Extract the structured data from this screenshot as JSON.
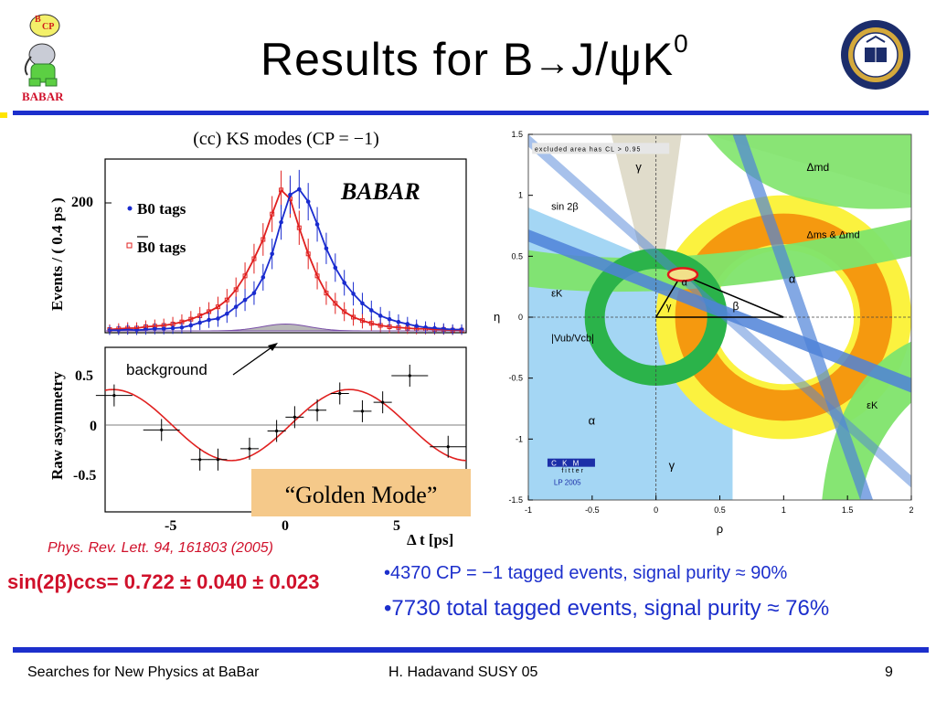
{
  "slide": {
    "title_main": "Results for B",
    "title_arrow": "→",
    "title_jpsi": "J/ψK",
    "title_sup": "0",
    "logo_left_text": "BABAR",
    "footer_left": "Searches for New Physics at BaBar",
    "footer_middle": "H. Hadavand  SUSY 05",
    "page_number": "9",
    "reference": "Phys. Rev. Lett. 94, 161803 (2005)",
    "sin2beta": "sin(2β)ccs= 0.722 ± 0.040 ± 0.023",
    "bullet1": "•4370 CP = −1 tagged events, signal purity ≈ 90%",
    "bullet2": "•7730 total tagged events, signal purity ≈ 76%"
  },
  "chart_data": [
    {
      "type": "scatter",
      "title": "(cc) KS modes (CP = −1)",
      "panel_top": {
        "ylabel": "Events / ( 0.4 ps )",
        "yticks": [
          "200"
        ],
        "logo": "BABAR",
        "legend": [
          "B0 tags",
          "B0 tags"
        ],
        "annotation": "background"
      },
      "panel_bottom": {
        "ylabel": "Raw asymmetry",
        "yticks": [
          "0.5",
          "0",
          "-0.5"
        ],
        "xticks": [
          "-5",
          "0",
          "5"
        ],
        "xlabel": "Δ t [ps]",
        "annotation": "“Golden Mode”"
      },
      "colors": {
        "b0": "#1a2ccf",
        "b0bar": "#e0201f",
        "fit": "#e0201f",
        "background": "#b8b8b8"
      },
      "series": [
        {
          "name": "B0 tags",
          "x": [
            -7.8,
            -7.4,
            -7.0,
            -6.6,
            -6.2,
            -5.8,
            -5.4,
            -5.0,
            -4.6,
            -4.2,
            -3.8,
            -3.4,
            -3.0,
            -2.6,
            -2.2,
            -1.8,
            -1.4,
            -1.0,
            -0.6,
            -0.2,
            0.2,
            0.6,
            1.0,
            1.4,
            1.8,
            2.2,
            2.6,
            3.0,
            3.4,
            3.8,
            4.2,
            4.6,
            5.0,
            5.4,
            5.8,
            6.2,
            6.6,
            7.0,
            7.4,
            7.8
          ],
          "y": [
            1,
            1,
            2,
            1,
            2,
            3,
            3,
            4,
            5,
            8,
            12,
            16,
            18,
            25,
            35,
            45,
            55,
            78,
            112,
            158,
            198,
            206,
            188,
            155,
            120,
            92,
            70,
            54,
            40,
            30,
            22,
            17,
            13,
            10,
            7,
            5,
            4,
            3,
            2,
            2
          ]
        },
        {
          "name": "B0 tags",
          "x": [
            -7.8,
            -7.4,
            -7.0,
            -6.6,
            -6.2,
            -5.8,
            -5.4,
            -5.0,
            -4.6,
            -4.2,
            -3.8,
            -3.4,
            -3.0,
            -2.6,
            -2.2,
            -1.8,
            -1.4,
            -1.0,
            -0.6,
            -0.2,
            0.2,
            0.6,
            1.0,
            1.4,
            1.8,
            2.2,
            2.6,
            3.0,
            3.4,
            3.8,
            4.2,
            4.6,
            5.0,
            5.4,
            5.8,
            6.2,
            6.6,
            7.0,
            7.4,
            7.8
          ],
          "y": [
            2,
            3,
            4,
            4,
            6,
            7,
            8,
            10,
            13,
            17,
            22,
            28,
            35,
            45,
            60,
            80,
            105,
            133,
            170,
            205,
            192,
            150,
            112,
            80,
            55,
            40,
            28,
            20,
            15,
            11,
            8,
            6,
            5,
            4,
            3,
            3,
            2,
            2,
            1,
            1
          ]
        }
      ],
      "asymmetry": {
        "x": [
          -7.6,
          -5.5,
          -3.8,
          -3.0,
          -1.6,
          -0.4,
          0.4,
          1.4,
          2.4,
          3.4,
          4.3,
          5.5,
          7.2
        ],
        "y": [
          0.3,
          -0.05,
          -0.35,
          -0.35,
          -0.24,
          -0.06,
          0.08,
          0.15,
          0.32,
          0.14,
          0.23,
          0.5,
          -0.22
        ]
      }
    },
    {
      "type": "scatter",
      "xlabel": "ρ",
      "ylabel": "η",
      "xlim": [
        -1,
        2
      ],
      "ylim": [
        -1.5,
        1.5
      ],
      "xticks": [
        "-1",
        "-0.5",
        "0",
        "0.5",
        "1",
        "1.5",
        "2"
      ],
      "yticks": [
        "1.5",
        "1",
        "0.5",
        "0",
        "-0.5",
        "-1",
        "-1.5"
      ],
      "labels": {
        "excluded": "excluded area has CL > 0.95",
        "gamma": "γ",
        "dmd": "Δmd",
        "sin2b": "sin 2β",
        "dms": "Δms & Δmd",
        "epsk": "εK",
        "alpha": "α",
        "beta": "β",
        "vub": "|Vub/Vcb|",
        "ckm": "C K M",
        "fitter": "fitter",
        "lp": "LP 2005"
      },
      "colors": {
        "grey": "#e0dccb",
        "yellow": "#fbf23f",
        "orange": "#f5990f",
        "green": "#7fe46b",
        "darkgreen": "#2bb34a",
        "lightblue": "#a4d6f4",
        "blue": "#4f83d8",
        "red": "#e3171b"
      }
    }
  ]
}
